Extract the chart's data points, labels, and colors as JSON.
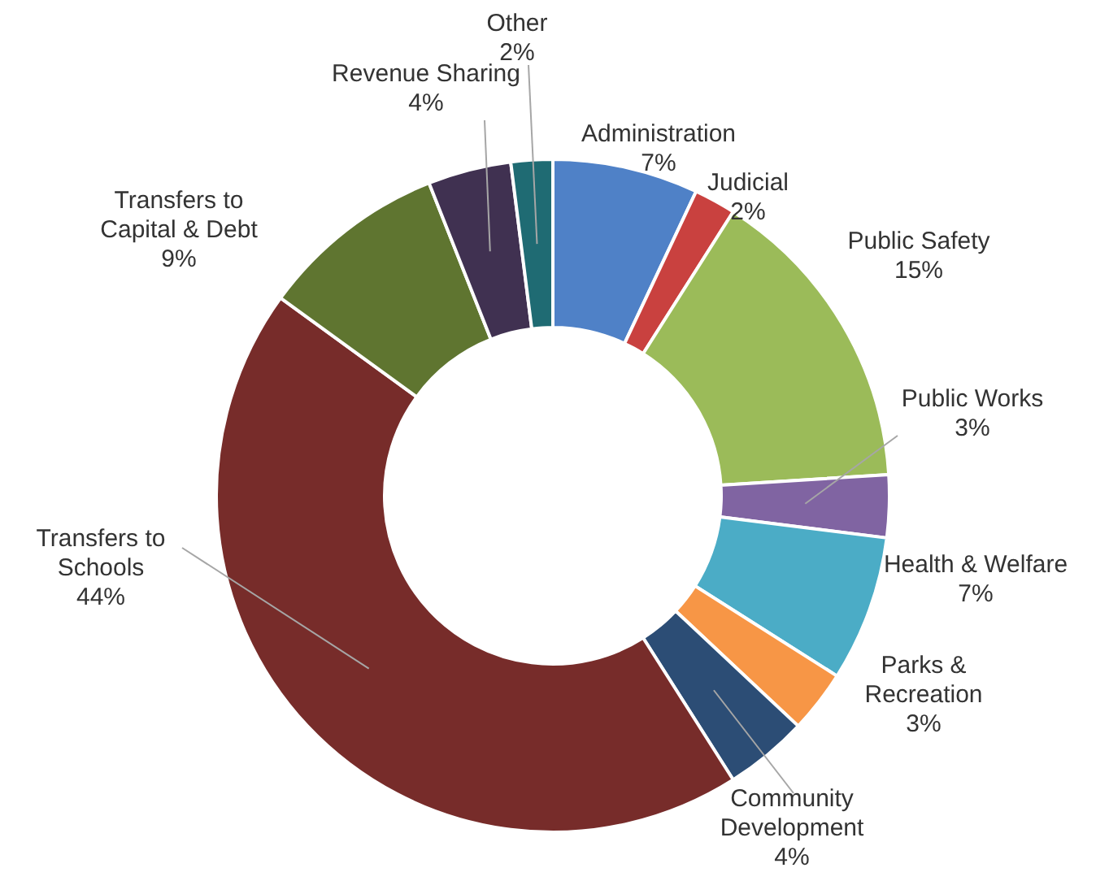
{
  "chart_data": {
    "type": "donut",
    "categories": [
      "Administration",
      "Judicial",
      "Public Safety",
      "Public Works",
      "Health & Welfare",
      "Parks & Recreation",
      "Community Development",
      "Transfers to Schools",
      "Transfers to Capital & Debt",
      "Revenue Sharing",
      "Other"
    ],
    "values": [
      7,
      2,
      15,
      3,
      7,
      3,
      4,
      44,
      9,
      4,
      2
    ],
    "value_labels": [
      "7%",
      "2%",
      "15%",
      "3%",
      "7%",
      "3%",
      "4%",
      "44%",
      "9%",
      "4%",
      "2%"
    ],
    "colors": [
      "#4f81c7",
      "#c9413f",
      "#9bbb59",
      "#8064a2",
      "#4bacc6",
      "#f79646",
      "#2c4d75",
      "#772c2a",
      "#5f7530",
      "#403151",
      "#1f6b73"
    ],
    "legend": false
  }
}
